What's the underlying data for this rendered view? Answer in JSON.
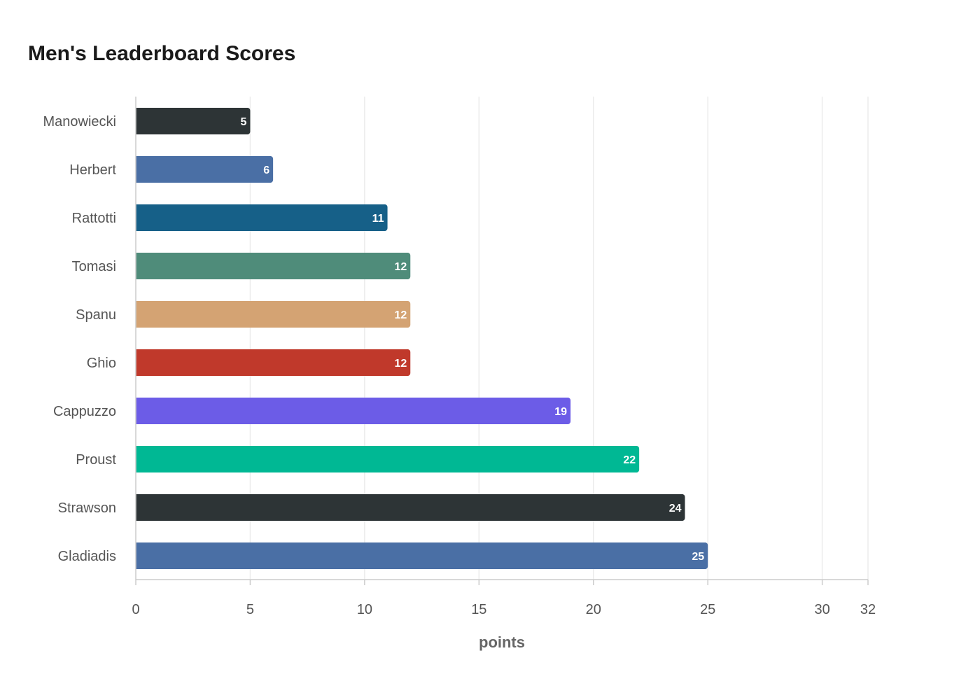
{
  "chart_data": {
    "type": "bar",
    "orientation": "horizontal",
    "title": "Men's Leaderboard Scores",
    "xlabel": "points",
    "ylabel": "",
    "categories": [
      "Manowiecki",
      "Herbert",
      "Rattotti",
      "Tomasi",
      "Spanu",
      "Ghio",
      "Cappuzzo",
      "Proust",
      "Strawson",
      "Gladiadis"
    ],
    "values": [
      5,
      6,
      11,
      12,
      12,
      12,
      19,
      22,
      24,
      25
    ],
    "colors": [
      "#2d3436",
      "#4a6fa5",
      "#166088",
      "#4f8c7a",
      "#d4a373",
      "#c0392b",
      "#6c5ce7",
      "#00b894",
      "#2d3436",
      "#4a6fa5"
    ],
    "xlim": [
      0,
      32
    ],
    "x_ticks": [
      0,
      5,
      10,
      15,
      20,
      25,
      30,
      32
    ],
    "grid": true,
    "legend": "none"
  }
}
